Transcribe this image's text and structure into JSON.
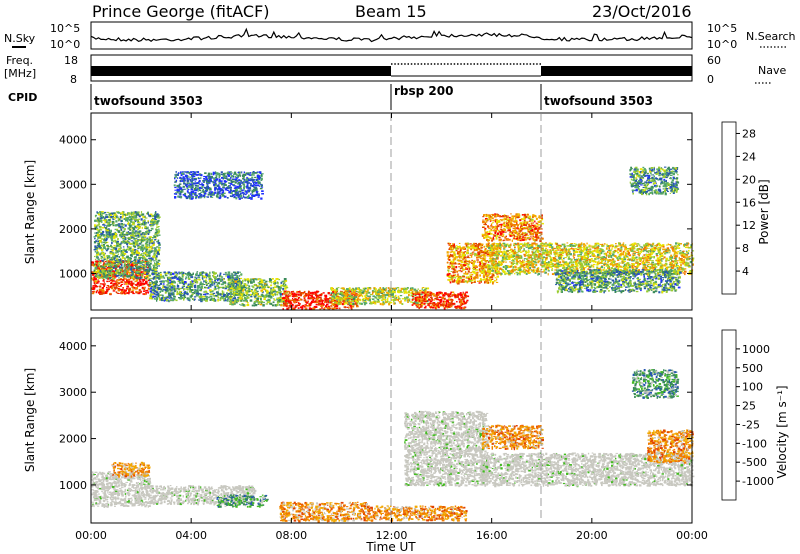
{
  "header": {
    "radar": "Prince George (fitACF)",
    "beam": "Beam 15",
    "date": "23/Oct/2016"
  },
  "strip_labels": {
    "nsky": "N.Sky",
    "nsearch": "N.Search",
    "freq_line1": "Freq.",
    "freq_line2": "[MHz]",
    "nave": "Nave",
    "cpid": "CPID"
  },
  "colors": {
    "power_scale": [
      "#1f2fff",
      "#2555b0",
      "#3a8a5a",
      "#55a86a",
      "#9acd32",
      "#e8e400",
      "#f2a800",
      "#f07a00",
      "#e04000",
      "#ff0000"
    ],
    "velocity_scale": [
      "#ff0000",
      "#e04000",
      "#f07a00",
      "#f2a800",
      "#c8c8c0",
      "#c8c8c0",
      "#44bb22",
      "#3a8a5a",
      "#2555b0",
      "#1f2fff"
    ],
    "ground_scatter": "#c8c8c0"
  },
  "chart_data": [
    {
      "type": "line",
      "name": "noise",
      "left_axis": {
        "label": "N.Sky",
        "ticks": [
          "10^5",
          "10^0"
        ]
      },
      "right_axis": {
        "label": "N.Search",
        "ticks": [
          "10^5",
          "10^0"
        ]
      },
      "x": [
        "00:00",
        "04:00",
        "08:00",
        "12:00",
        "16:00",
        "20:00",
        "00:00"
      ]
    },
    {
      "type": "line",
      "name": "frequency",
      "left_axis": {
        "label": "Freq. [MHz]",
        "ticks": [
          "18",
          "8"
        ]
      },
      "right_axis": {
        "label": "Nave",
        "ticks": [
          "60",
          "0"
        ]
      },
      "cpid_segments": [
        {
          "label": "twofsound 3503",
          "start_hour": 0,
          "end_hour": 12
        },
        {
          "label": "rbsp 200",
          "start_hour": 12,
          "end_hour": 18
        },
        {
          "label": "twofsound 3503",
          "start_hour": 18,
          "end_hour": 24
        }
      ]
    },
    {
      "type": "heatmap",
      "name": "power",
      "ylabel": "Slant Range [km]",
      "yticks": [
        1000,
        2000,
        3000,
        4000
      ],
      "ylim": [
        180,
        4600
      ],
      "colorbar": {
        "label": "Power [dB]",
        "ticks": [
          4,
          8,
          12,
          16,
          20,
          24,
          28
        ],
        "range": [
          0,
          30
        ]
      },
      "regions": [
        {
          "t0": 0.0,
          "t1": 2.3,
          "r0": 550,
          "r1": 1300,
          "level": 0.9
        },
        {
          "t0": 0.1,
          "t1": 2.7,
          "r0": 900,
          "r1": 2400,
          "level": 0.35
        },
        {
          "t0": 2.3,
          "t1": 6.0,
          "r0": 400,
          "r1": 1050,
          "level": 0.3
        },
        {
          "t0": 5.5,
          "t1": 7.8,
          "r0": 300,
          "r1": 900,
          "level": 0.4
        },
        {
          "t0": 7.6,
          "t1": 10.6,
          "r0": 220,
          "r1": 620,
          "level": 0.92
        },
        {
          "t0": 9.5,
          "t1": 13.5,
          "r0": 330,
          "r1": 700,
          "level": 0.5
        },
        {
          "t0": 12.8,
          "t1": 15.0,
          "r0": 240,
          "r1": 600,
          "level": 0.9
        },
        {
          "t0": 14.2,
          "t1": 16.2,
          "r0": 800,
          "r1": 1700,
          "level": 0.7
        },
        {
          "t0": 15.6,
          "t1": 18.0,
          "r0": 1750,
          "r1": 2350,
          "level": 0.72
        },
        {
          "t0": 15.8,
          "t1": 24.0,
          "r0": 1000,
          "r1": 1700,
          "level": 0.55
        },
        {
          "t0": 18.5,
          "t1": 23.5,
          "r0": 600,
          "r1": 1100,
          "level": 0.3
        },
        {
          "t0": 21.5,
          "t1": 23.4,
          "r0": 2800,
          "r1": 3400,
          "level": 0.3
        },
        {
          "t0": 3.3,
          "t1": 6.8,
          "r0": 2700,
          "r1": 3300,
          "level": 0.15
        }
      ]
    },
    {
      "type": "heatmap",
      "name": "velocity",
      "ylabel": "Slant Range [km]",
      "xlabel": "Time UT",
      "yticks": [
        1000,
        2000,
        3000,
        4000
      ],
      "ylim": [
        180,
        4600
      ],
      "x": [
        "00:00",
        "04:00",
        "08:00",
        "12:00",
        "16:00",
        "20:00",
        "00:00"
      ],
      "colorbar": {
        "label": "Velocity [m s⁻¹]",
        "ticks": [
          1000,
          500,
          100,
          25,
          -25,
          -100,
          -500,
          -1000
        ]
      },
      "regions": [
        {
          "t0": 0.0,
          "t1": 2.3,
          "r0": 550,
          "r1": 1300,
          "cls": "gs"
        },
        {
          "t0": 0.8,
          "t1": 2.3,
          "r0": 1200,
          "r1": 1500,
          "cls": "neg"
        },
        {
          "t0": 2.3,
          "t1": 6.5,
          "r0": 600,
          "r1": 1000,
          "cls": "gs"
        },
        {
          "t0": 5.0,
          "t1": 7.0,
          "r0": 550,
          "r1": 800,
          "cls": "pos"
        },
        {
          "t0": 7.5,
          "t1": 11.0,
          "r0": 240,
          "r1": 640,
          "cls": "neg"
        },
        {
          "t0": 11.0,
          "t1": 15.0,
          "r0": 250,
          "r1": 560,
          "cls": "neg"
        },
        {
          "t0": 12.5,
          "t1": 15.8,
          "r0": 1000,
          "r1": 2600,
          "cls": "gs"
        },
        {
          "t0": 15.6,
          "t1": 18.0,
          "r0": 1800,
          "r1": 2300,
          "cls": "neg"
        },
        {
          "t0": 15.5,
          "t1": 24.0,
          "r0": 1000,
          "r1": 1700,
          "cls": "gs"
        },
        {
          "t0": 22.2,
          "t1": 24.0,
          "r0": 1500,
          "r1": 2200,
          "cls": "neg"
        },
        {
          "t0": 21.6,
          "t1": 23.4,
          "r0": 2900,
          "r1": 3500,
          "cls": "pos"
        }
      ]
    }
  ]
}
